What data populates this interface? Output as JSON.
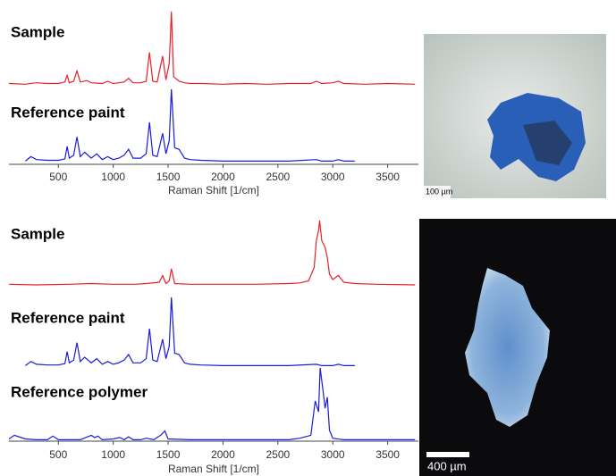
{
  "chart_data": [
    {
      "type": "line",
      "xlabel": "Raman Shift [1/cm]",
      "xlim": [
        50,
        3780
      ],
      "ylim": [
        0,
        100
      ],
      "xticks": [
        500,
        1000,
        1500,
        2000,
        2500,
        3000,
        3500
      ],
      "series": [
        {
          "name": "Sample",
          "color": "#e8202a",
          "x": [
            50,
            200,
            300,
            400,
            500,
            560,
            580,
            600,
            640,
            670,
            700,
            760,
            800,
            900,
            950,
            1000,
            1050,
            1100,
            1140,
            1180,
            1250,
            1300,
            1330,
            1360,
            1400,
            1450,
            1480,
            1510,
            1530,
            1550,
            1600,
            1650,
            1700,
            1800,
            2000,
            2200,
            2400,
            2600,
            2800,
            2850,
            2900,
            3000,
            3050,
            3100,
            3300,
            3500,
            3750
          ],
          "values": [
            3,
            2,
            4,
            3,
            3,
            5,
            14,
            4,
            6,
            20,
            5,
            7,
            4,
            3,
            6,
            3,
            4,
            5,
            10,
            4,
            4,
            6,
            45,
            6,
            5,
            40,
            8,
            30,
            100,
            12,
            6,
            4,
            3,
            3,
            2,
            3,
            2,
            3,
            3,
            6,
            3,
            4,
            6,
            3,
            2,
            3,
            2
          ]
        },
        {
          "name": "Reference paint",
          "color": "#1a1adb",
          "x": [
            200,
            250,
            300,
            400,
            500,
            560,
            580,
            600,
            640,
            670,
            700,
            740,
            800,
            850,
            900,
            950,
            1000,
            1050,
            1100,
            1140,
            1180,
            1250,
            1300,
            1330,
            1360,
            1400,
            1450,
            1480,
            1510,
            1530,
            1560,
            1600,
            1650,
            1700,
            1800,
            2000,
            2200,
            2400,
            2600,
            2850,
            2900,
            3000,
            3050,
            3100,
            3200
          ],
          "values": [
            2,
            8,
            4,
            3,
            3,
            5,
            22,
            6,
            10,
            35,
            8,
            14,
            6,
            12,
            4,
            8,
            4,
            6,
            10,
            18,
            6,
            6,
            12,
            55,
            10,
            8,
            40,
            12,
            30,
            100,
            20,
            18,
            6,
            4,
            3,
            2,
            2,
            2,
            2,
            4,
            2,
            2,
            4,
            2,
            2
          ]
        }
      ]
    },
    {
      "type": "line",
      "xlabel": "Raman Shift [1/cm]",
      "xlim": [
        50,
        3780
      ],
      "ylim": [
        0,
        100
      ],
      "xticks": [
        500,
        1000,
        1500,
        2000,
        2500,
        3000,
        3500
      ],
      "series": [
        {
          "name": "Sample",
          "color": "#e8202a",
          "x": [
            50,
            300,
            600,
            800,
            1000,
            1200,
            1300,
            1420,
            1450,
            1480,
            1510,
            1530,
            1560,
            1700,
            2000,
            2300,
            2600,
            2700,
            2780,
            2830,
            2850,
            2870,
            2880,
            2900,
            2930,
            2950,
            2970,
            3000,
            3050,
            3100,
            3200,
            3400,
            3750
          ],
          "values": [
            5,
            4,
            5,
            6,
            5,
            5,
            6,
            8,
            18,
            6,
            10,
            28,
            6,
            5,
            5,
            5,
            6,
            7,
            10,
            30,
            70,
            85,
            100,
            70,
            60,
            45,
            20,
            12,
            18,
            8,
            6,
            5,
            4
          ]
        },
        {
          "name": "Reference paint",
          "color": "#1a1adb",
          "x": [
            200,
            250,
            300,
            400,
            500,
            560,
            580,
            600,
            640,
            670,
            700,
            740,
            800,
            850,
            900,
            950,
            1000,
            1050,
            1100,
            1140,
            1180,
            1250,
            1300,
            1330,
            1360,
            1400,
            1450,
            1480,
            1510,
            1530,
            1560,
            1600,
            1650,
            1700,
            1800,
            2000,
            2200,
            2400,
            2600,
            2850,
            2900,
            3000,
            3050,
            3100,
            3200
          ],
          "values": [
            2,
            8,
            4,
            3,
            3,
            5,
            22,
            6,
            10,
            35,
            8,
            14,
            6,
            12,
            4,
            8,
            4,
            6,
            10,
            18,
            6,
            6,
            12,
            55,
            10,
            8,
            40,
            12,
            30,
            100,
            20,
            18,
            6,
            4,
            3,
            2,
            2,
            2,
            2,
            4,
            2,
            2,
            4,
            2,
            2
          ]
        },
        {
          "name": "Reference polymer",
          "color": "#1a1adb",
          "x": [
            50,
            100,
            200,
            300,
            400,
            450,
            500,
            700,
            800,
            830,
            860,
            900,
            1000,
            1060,
            1100,
            1140,
            1180,
            1250,
            1300,
            1370,
            1400,
            1440,
            1470,
            1500,
            1700,
            2000,
            2300,
            2600,
            2700,
            2800,
            2840,
            2870,
            2885,
            2910,
            2930,
            2950,
            2970,
            3000,
            3100,
            3300,
            3750
          ],
          "values": [
            3,
            8,
            3,
            2,
            2,
            7,
            2,
            2,
            8,
            5,
            7,
            2,
            3,
            5,
            2,
            6,
            2,
            2,
            4,
            2,
            5,
            9,
            14,
            3,
            2,
            2,
            2,
            2,
            4,
            8,
            55,
            40,
            100,
            70,
            45,
            60,
            15,
            4,
            2,
            2,
            2
          ]
        }
      ]
    }
  ],
  "images": [
    {
      "scale": "100 µm"
    },
    {
      "scale": "400 µm"
    }
  ]
}
